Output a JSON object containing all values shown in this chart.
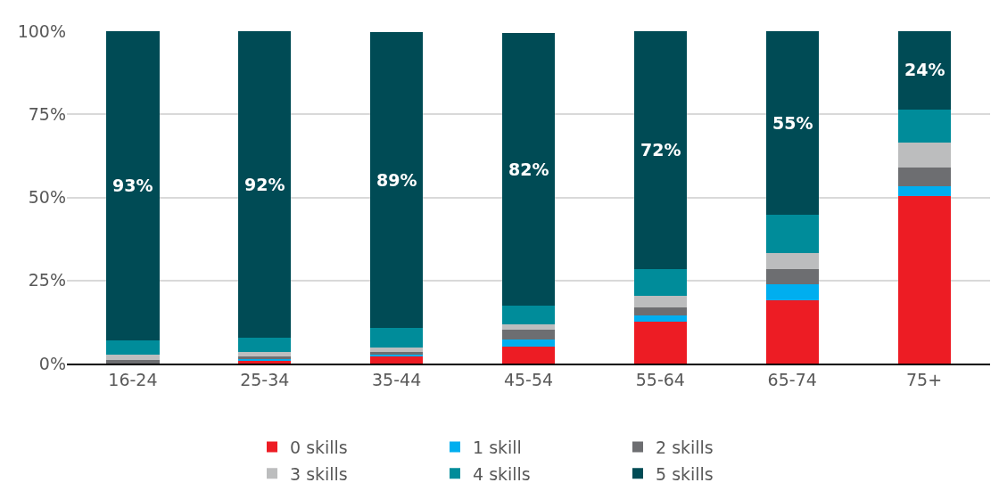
{
  "chart_data": {
    "type": "bar",
    "stacked": true,
    "categories": [
      "16-24",
      "25-34",
      "35-44",
      "45-54",
      "55-64",
      "65-74",
      "75+"
    ],
    "series": [
      {
        "name": "0 skills",
        "color": "#ed1c24",
        "values": [
          null,
          0.7,
          2.3,
          5.1,
          12.5,
          19,
          50.4
        ]
      },
      {
        "name": "1 skill",
        "color": "#00aeef",
        "values": [
          null,
          0.9,
          0.5,
          2.2,
          2.1,
          4.8,
          3
        ]
      },
      {
        "name": "2 skills",
        "color": "#6d6e71",
        "values": [
          1.2,
          0.5,
          0.8,
          3,
          2.2,
          4.6,
          5.7
        ]
      },
      {
        "name": "3 skills",
        "color": "#bcbdbe",
        "values": [
          1.6,
          1.5,
          1.3,
          1.4,
          3.5,
          4.9,
          7.3
        ]
      },
      {
        "name": "4 skills",
        "color": "#008c9a",
        "values": [
          4.2,
          4.3,
          5.9,
          5.8,
          8.1,
          11.6,
          10
        ]
      },
      {
        "name": "5 skills",
        "color": "#004b55",
        "values": [
          93,
          92,
          89,
          82,
          72,
          55,
          24
        ],
        "value_labels": [
          "93%",
          "92%",
          "89%",
          "82%",
          "72%",
          "55%",
          "24%"
        ]
      }
    ],
    "ylim": [
      0,
      100
    ],
    "yticks": [
      {
        "value": 0,
        "label": "0%"
      },
      {
        "value": 25,
        "label": "25%"
      },
      {
        "value": 50,
        "label": "50%"
      },
      {
        "value": 75,
        "label": "75%"
      },
      {
        "value": 100,
        "label": "100%"
      }
    ],
    "grid": "y",
    "legend": "bottom"
  }
}
